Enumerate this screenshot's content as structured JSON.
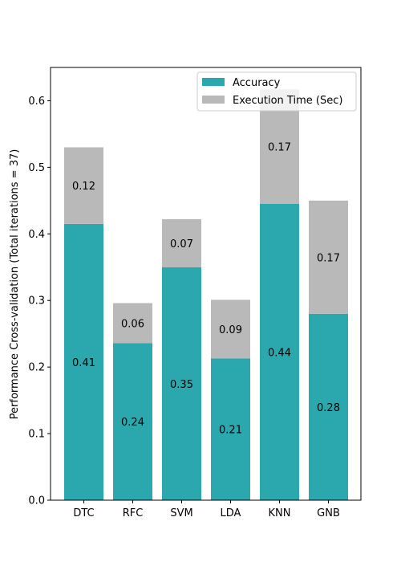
{
  "chart_data": {
    "type": "bar",
    "stacked": true,
    "categories": [
      "DTC",
      "RFC",
      "SVM",
      "LDA",
      "KNN",
      "GNB"
    ],
    "series": [
      {
        "name": "Accuracy",
        "color": "#2aa8ad",
        "values": [
          0.415,
          0.236,
          0.35,
          0.213,
          0.445,
          0.28
        ],
        "labels": [
          "0.41",
          "0.24",
          "0.35",
          "0.21",
          "0.44",
          "0.28"
        ]
      },
      {
        "name": "Execution Time (Sec)",
        "color": "#b9b9b9",
        "values": [
          0.115,
          0.06,
          0.072,
          0.088,
          0.172,
          0.17
        ],
        "labels": [
          "0.12",
          "0.06",
          "0.07",
          "0.09",
          "0.17",
          "0.17"
        ]
      }
    ],
    "ylabel": "Performance Cross-validation (Total iterations = 37)",
    "ylim": [
      0,
      0.65
    ],
    "yticks": [
      "0.0",
      "0.1",
      "0.2",
      "0.3",
      "0.4",
      "0.5",
      "0.6"
    ],
    "legend": "top-right",
    "grid": false
  }
}
